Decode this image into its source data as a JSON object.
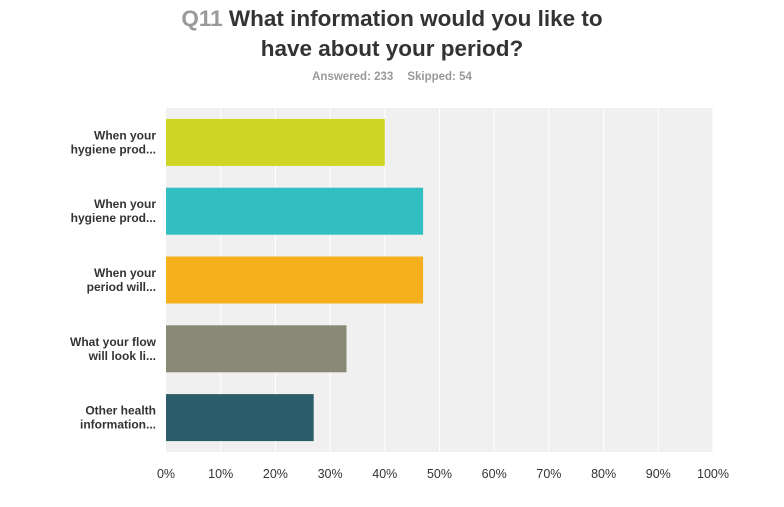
{
  "question": {
    "number": "Q11",
    "title_line1": "What information would you like to",
    "title_line2": "have about your period?"
  },
  "stats": {
    "answered": "Answered: 233",
    "skipped": "Skipped: 54"
  },
  "chart_data": {
    "type": "bar",
    "orientation": "horizontal",
    "categories": [
      [
        "When your",
        "hygiene prod..."
      ],
      [
        "When your",
        "hygiene prod..."
      ],
      [
        "When your",
        "period will..."
      ],
      [
        "What your flow",
        "will look li..."
      ],
      [
        "Other health",
        "information..."
      ]
    ],
    "values": [
      40,
      47,
      47,
      33,
      27
    ],
    "colors": [
      "#cfd626",
      "#33bec1",
      "#f6af1d",
      "#8a8978",
      "#2c5d6a"
    ],
    "x_ticks": [
      "0%",
      "10%",
      "20%",
      "30%",
      "40%",
      "50%",
      "60%",
      "70%",
      "80%",
      "90%",
      "100%"
    ],
    "xlim": [
      0,
      100
    ],
    "x_unit": "%",
    "grid": true
  }
}
